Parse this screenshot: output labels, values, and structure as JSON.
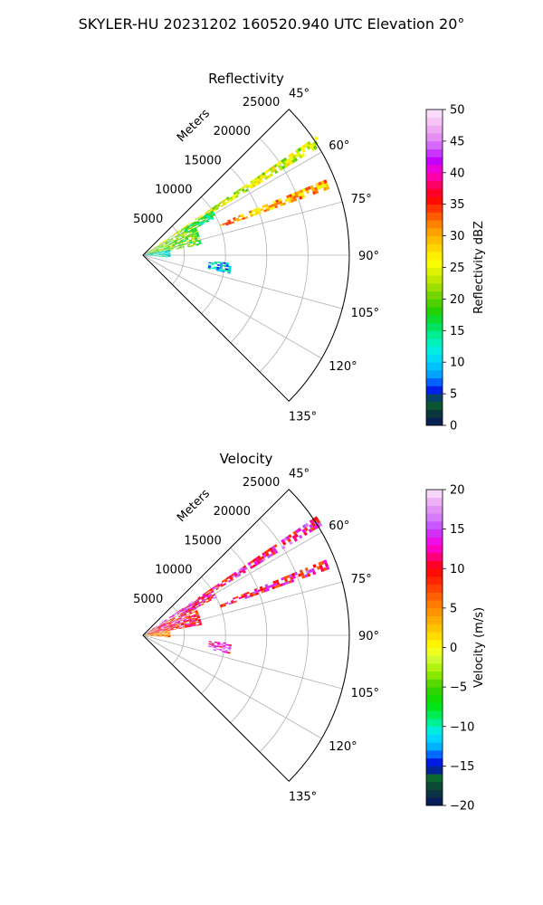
{
  "page": {
    "suptitle": "SKYLER-HU  20231202  160520.940 UTC Elevation 20°"
  },
  "chart_data": [
    {
      "type": "polar-sector",
      "title": "Reflectivity",
      "range_label": "Meters",
      "range_ticks": [
        5000,
        10000,
        15000,
        20000,
        25000
      ],
      "range_max": 25000,
      "theta_range_deg": [
        45,
        135
      ],
      "theta_ticks_deg": [
        45,
        60,
        75,
        90,
        105,
        120,
        135
      ],
      "theta_tick_labels": [
        "45°",
        "60°",
        "75°",
        "90°",
        "105°",
        "120°",
        "135°"
      ],
      "grid": true,
      "colorbar": {
        "label": "Reflectivity dBZ",
        "min": 0,
        "max": 50,
        "ticks": [
          0,
          5,
          10,
          15,
          20,
          25,
          30,
          35,
          40,
          45,
          50
        ],
        "tick_labels": [
          "0",
          "5",
          "10",
          "15",
          "20",
          "25",
          "30",
          "35",
          "40",
          "45",
          "50"
        ]
      },
      "echoes": [
        {
          "az_deg": [
            55.5,
            58.5
          ],
          "range_m": [
            1000,
            25500
          ],
          "value": 24
        },
        {
          "az_deg": [
            67.5,
            70.0
          ],
          "range_m": [
            10000,
            24000
          ],
          "value": 30
        },
        {
          "az_deg": [
            57.0,
            63.0
          ],
          "range_m": [
            5500,
            10000
          ],
          "value": 16
        },
        {
          "az_deg": [
            60.0,
            80.0
          ],
          "range_m": [
            600,
            7000
          ],
          "value": 20
        },
        {
          "az_deg": [
            78.0,
            95.0
          ],
          "range_m": [
            200,
            3200
          ],
          "value": 12
        },
        {
          "az_deg": [
            95.0,
            102.0
          ],
          "range_m": [
            8000,
            10500
          ],
          "value": 10
        }
      ]
    },
    {
      "type": "polar-sector",
      "title": "Velocity",
      "range_label": "Meters",
      "range_ticks": [
        5000,
        10000,
        15000,
        20000,
        25000
      ],
      "range_max": 25000,
      "theta_range_deg": [
        45,
        135
      ],
      "theta_ticks_deg": [
        45,
        60,
        75,
        90,
        105,
        120,
        135
      ],
      "theta_tick_labels": [
        "45°",
        "60°",
        "75°",
        "90°",
        "105°",
        "120°",
        "135°"
      ],
      "grid": true,
      "colorbar": {
        "label": "Velocity (m/s)",
        "min": -20,
        "max": 20,
        "ticks": [
          -20,
          -15,
          -10,
          -5,
          0,
          5,
          10,
          15,
          20
        ],
        "tick_labels": [
          "−20",
          "−15",
          "−10",
          "−5",
          "0",
          "5",
          "10",
          "15",
          "20"
        ]
      },
      "echoes": [
        {
          "az_deg": [
            55.5,
            58.5
          ],
          "range_m": [
            1000,
            25500
          ],
          "value": 12
        },
        {
          "az_deg": [
            67.5,
            70.0
          ],
          "range_m": [
            10000,
            24000
          ],
          "value": 11
        },
        {
          "az_deg": [
            57.0,
            63.0
          ],
          "range_m": [
            5500,
            10000
          ],
          "value": 11
        },
        {
          "az_deg": [
            60.0,
            80.0
          ],
          "range_m": [
            600,
            7000
          ],
          "value": 10
        },
        {
          "az_deg": [
            78.0,
            95.0
          ],
          "range_m": [
            200,
            3200
          ],
          "value": 5
        },
        {
          "az_deg": [
            95.0,
            102.0
          ],
          "range_m": [
            8000,
            10500
          ],
          "value": 14
        }
      ]
    }
  ]
}
